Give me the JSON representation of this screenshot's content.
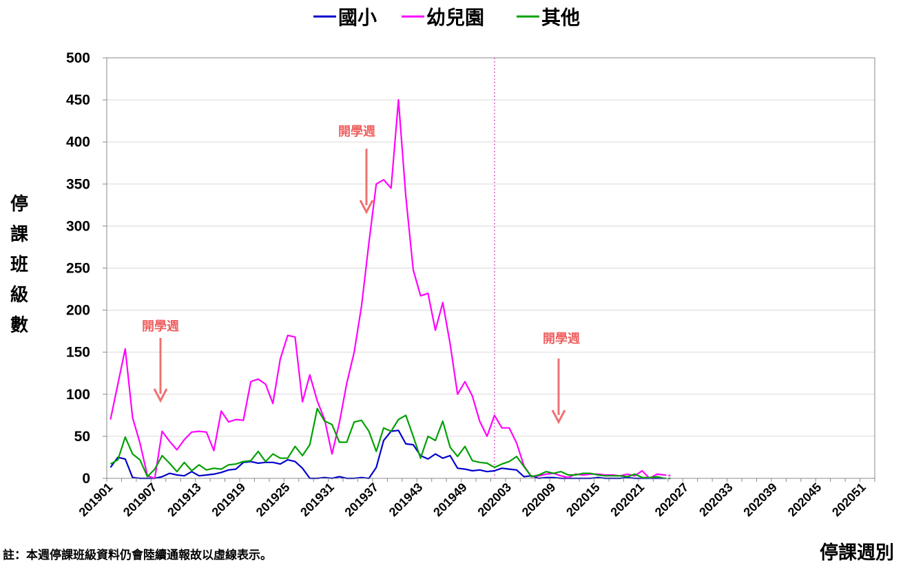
{
  "chart_data": {
    "type": "line",
    "title": "",
    "ylabel": "停課班級數",
    "xlabel": "停課週別",
    "ylim": [
      0,
      500
    ],
    "yticks": [
      0,
      50,
      100,
      150,
      200,
      250,
      300,
      350,
      400,
      450,
      500
    ],
    "grid": "horizontal",
    "legend": "top-center",
    "x_labels": [
      "201901",
      "201907",
      "201913",
      "201919",
      "201925",
      "201931",
      "201937",
      "201943",
      "201949",
      "202003",
      "202009",
      "202015",
      "202021",
      "202027",
      "202033",
      "202039",
      "202045",
      "202051"
    ],
    "series": [
      {
        "name": "國小",
        "color": "#0000cc",
        "values": [
          13,
          25,
          23,
          1,
          0,
          0,
          0,
          2,
          6,
          4,
          3,
          8,
          3,
          4,
          5,
          7,
          10,
          11,
          19,
          20,
          18,
          19,
          19,
          17,
          22,
          20,
          12,
          0,
          0,
          1,
          0,
          2,
          0,
          0,
          1,
          0,
          13,
          45,
          56,
          57,
          41,
          40,
          27,
          23,
          29,
          24,
          27,
          12,
          11,
          9,
          10,
          8,
          9,
          12,
          11,
          10,
          2,
          3,
          0,
          1,
          1,
          0,
          0,
          0,
          0,
          0,
          1,
          0,
          0,
          0,
          1,
          0,
          0,
          0,
          0,
          0,
          0
        ]
      },
      {
        "name": "幼兒園",
        "color": "#ff00ff",
        "values": [
          70,
          112,
          154,
          72,
          42,
          3,
          0,
          56,
          44,
          34,
          46,
          55,
          56,
          55,
          33,
          80,
          67,
          70,
          69,
          115,
          118,
          112,
          89,
          142,
          170,
          168,
          91,
          123,
          92,
          70,
          29,
          66,
          113,
          150,
          205,
          280,
          350,
          355,
          345,
          450,
          335,
          248,
          217,
          220,
          176,
          209,
          160,
          100,
          115,
          98,
          68,
          50,
          75,
          60,
          60,
          42,
          15,
          2,
          3,
          5,
          6,
          3,
          1,
          5,
          4,
          5,
          5,
          4,
          4,
          3,
          5,
          3,
          9,
          0,
          5,
          4,
          3
        ]
      },
      {
        "name": "其他",
        "color": "#00a000",
        "values": [
          17,
          22,
          49,
          29,
          22,
          2,
          11,
          27,
          18,
          8,
          19,
          9,
          16,
          10,
          12,
          11,
          16,
          17,
          20,
          21,
          32,
          20,
          29,
          24,
          24,
          38,
          27,
          40,
          83,
          68,
          64,
          43,
          43,
          67,
          69,
          56,
          32,
          60,
          56,
          70,
          75,
          50,
          24,
          50,
          45,
          68,
          37,
          26,
          38,
          21,
          19,
          18,
          13,
          17,
          20,
          26,
          14,
          2,
          4,
          8,
          6,
          8,
          4,
          4,
          6,
          6,
          4,
          3,
          3,
          3,
          2,
          5,
          1,
          1,
          2,
          0,
          0
        ]
      }
    ],
    "annotations": [
      {
        "text": "開學週",
        "week": "201908"
      },
      {
        "text": "開學週",
        "week": "201936"
      },
      {
        "text": "開學週",
        "week": "202010"
      }
    ],
    "note": "註：本週停課班級資料仍會陸續通報故以虛線表示。"
  }
}
